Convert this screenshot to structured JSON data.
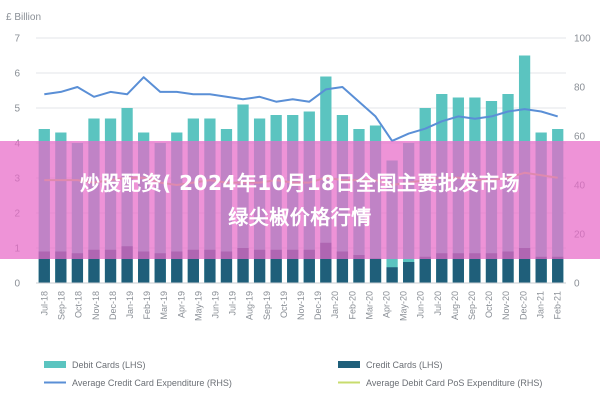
{
  "overlay": {
    "line1": "炒股配资( 2024年10月18日全国主要批发市场",
    "line2": "绿尖椒价格行情"
  },
  "chart_data": {
    "type": "bar",
    "y_left_unit": "£ Billion",
    "y_left_ticks": [
      0,
      1,
      2,
      3,
      4,
      5,
      6,
      7
    ],
    "y_left_range": [
      0,
      7
    ],
    "y_right_ticks": [
      0,
      20,
      40,
      60,
      80,
      100
    ],
    "y_right_range": [
      0,
      100
    ],
    "categories": [
      "Jul-18",
      "Aug-18",
      "Sep-18",
      "Oct-18",
      "Nov-18",
      "Dec-18",
      "Jan-19",
      "Feb-19",
      "Mar-19",
      "Apr-19",
      "May-19",
      "Jun-19",
      "Jul-19",
      "Aug-19",
      "Sep-19",
      "Oct-19",
      "Nov-19",
      "Dec-19",
      "Jan-20",
      "Feb-20",
      "Mar-20",
      "Apr-20",
      "May-20",
      "Jun-20",
      "Jul-20",
      "Aug-20",
      "Sep-20",
      "Oct-20",
      "Nov-20",
      "Dec-20",
      "Jan-21",
      "Feb-21"
    ],
    "x_tick_labels": [
      "Jul-18",
      "Sep-18",
      "Oct-18",
      "Nov-18",
      "Dec-18",
      "Jan-19",
      "Feb-19",
      "Mar-19",
      "Apr-19",
      "May-19",
      "Jun-19",
      "Jul-19",
      "Aug-19",
      "Sep-19",
      "Oct-19",
      "Nov-19",
      "Dec-19",
      "Jan-20",
      "Feb-20",
      "Mar-20",
      "Apr-20",
      "May-20",
      "Jun-20",
      "Jul-20",
      "Aug-20",
      "Sep-20",
      "Oct-20",
      "Nov-20",
      "Dec-20",
      "Jan-21",
      "Feb-21"
    ],
    "series": [
      {
        "name": "Debit Cards (LHS)",
        "kind": "bar",
        "axis": "left",
        "color": "#5bc4c0",
        "values": [
          4.4,
          4.3,
          4.0,
          4.7,
          4.7,
          5.0,
          4.3,
          4.0,
          4.3,
          4.7,
          4.7,
          4.4,
          5.1,
          4.7,
          4.8,
          4.8,
          4.9,
          5.9,
          4.8,
          4.4,
          4.5,
          3.5,
          4.0,
          5.0,
          5.4,
          5.3,
          5.3,
          5.2,
          5.4,
          6.5,
          4.3,
          4.4
        ]
      },
      {
        "name": "Credit Cards (LHS)",
        "kind": "bar",
        "axis": "left",
        "color": "#1f5f7a",
        "values": [
          0.9,
          0.9,
          0.85,
          0.95,
          0.95,
          1.05,
          0.9,
          0.85,
          0.9,
          0.95,
          0.95,
          0.9,
          1.0,
          0.95,
          0.95,
          0.95,
          0.95,
          1.15,
          0.9,
          0.8,
          0.7,
          0.45,
          0.6,
          0.75,
          0.85,
          0.85,
          0.85,
          0.85,
          0.9,
          1.0,
          0.75,
          0.75
        ]
      },
      {
        "name": "Average Credit Card Expenditure (RHS)",
        "kind": "line",
        "axis": "right",
        "color": "#5a8fd6",
        "values": [
          77,
          78,
          80,
          76,
          78,
          77,
          84,
          78,
          78,
          77,
          77,
          76,
          75,
          76,
          74,
          75,
          74,
          79,
          80,
          74,
          68,
          58,
          61,
          63,
          66,
          68,
          67,
          68,
          70,
          71,
          70,
          68
        ]
      },
      {
        "name": "Average Debit Card PoS Expenditure (RHS)",
        "kind": "line",
        "axis": "right",
        "color": "#c8dc6e",
        "values": [
          42,
          42,
          42,
          41,
          42,
          43,
          43,
          41,
          40,
          41,
          42,
          41,
          41,
          41,
          42,
          41,
          41,
          43,
          42,
          42,
          42,
          40,
          41,
          42,
          43,
          43,
          42,
          42,
          43,
          45,
          44,
          43
        ]
      }
    ],
    "legend_placement": "bottom",
    "grid": true
  }
}
